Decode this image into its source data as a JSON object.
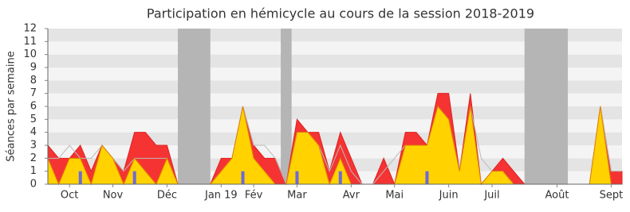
{
  "chart_data": {
    "type": "area",
    "title": "Participation en hémicycle au cours de la session 2018-2019",
    "y_label": "Séances par semaine",
    "categories": [
      null,
      null,
      "Oct",
      null,
      null,
      null,
      "Nov",
      null,
      null,
      null,
      null,
      "Déc",
      null,
      null,
      null,
      null,
      "Jan 19",
      null,
      null,
      "Fév",
      null,
      null,
      null,
      "Mar",
      null,
      null,
      null,
      null,
      "Avr",
      null,
      null,
      null,
      "Mai",
      null,
      null,
      null,
      null,
      "Juin",
      null,
      null,
      null,
      "Juil",
      null,
      null,
      null,
      null,
      null,
      "Août",
      null,
      null,
      null,
      null,
      "Sept",
      null
    ],
    "series": [
      {
        "color": "#f53333",
        "values": [
          3,
          2,
          2,
          3,
          1,
          3,
          2,
          1,
          4,
          4,
          3,
          3,
          0,
          0,
          0,
          0,
          2,
          2,
          6,
          3,
          2,
          2,
          0,
          5,
          4,
          4,
          1,
          4,
          2,
          0,
          0,
          2,
          0,
          4,
          4,
          3,
          7,
          7,
          1,
          7,
          0,
          1,
          2,
          1,
          0,
          0,
          0,
          0,
          0,
          0,
          0,
          6,
          1,
          1
        ]
      },
      {
        "color": "#ffd200",
        "values": [
          2,
          0,
          2,
          2,
          0,
          3,
          2,
          0,
          2,
          1,
          0,
          2,
          0,
          0,
          0,
          0,
          1,
          2,
          6,
          2,
          1,
          0,
          0,
          4,
          4,
          3,
          0,
          2,
          0,
          0,
          0,
          0,
          0,
          3,
          3,
          3,
          6,
          5,
          1,
          6,
          0,
          1,
          1,
          0,
          0,
          0,
          0,
          0,
          0,
          0,
          0,
          6,
          0,
          0
        ]
      },
      {
        "color": "#bbbbbb",
        "values": [
          2,
          2,
          3,
          2,
          2,
          3,
          2,
          1,
          2,
          2,
          2,
          2,
          0,
          0,
          0,
          0,
          1,
          2,
          6,
          3,
          3,
          2,
          0,
          4,
          4,
          3,
          1,
          3,
          1,
          0,
          0,
          1,
          2,
          3,
          3,
          3,
          6,
          5,
          1,
          6,
          2,
          1,
          1,
          0,
          0,
          0,
          0,
          0,
          0,
          0,
          0,
          6,
          1,
          1
        ]
      },
      {
        "color": "#6a6adc",
        "values": [
          null,
          null,
          null,
          1,
          null,
          null,
          null,
          null,
          1,
          null,
          null,
          null,
          null,
          null,
          null,
          null,
          null,
          null,
          1,
          null,
          null,
          null,
          null,
          1,
          null,
          null,
          null,
          1,
          null,
          null,
          null,
          null,
          null,
          null,
          null,
          1,
          null,
          null,
          null,
          null,
          null,
          null,
          null,
          null,
          null,
          null,
          null,
          null,
          null,
          null,
          null,
          null,
          null,
          null
        ]
      }
    ],
    "shaded": [
      [
        12,
        15
      ],
      [
        21.5,
        22.5
      ],
      [
        44,
        48
      ]
    ],
    "ylim": [
      0,
      12
    ],
    "yticks": [
      0,
      1,
      2,
      3,
      4,
      5,
      6,
      7,
      8,
      9,
      10,
      11,
      12
    ]
  }
}
